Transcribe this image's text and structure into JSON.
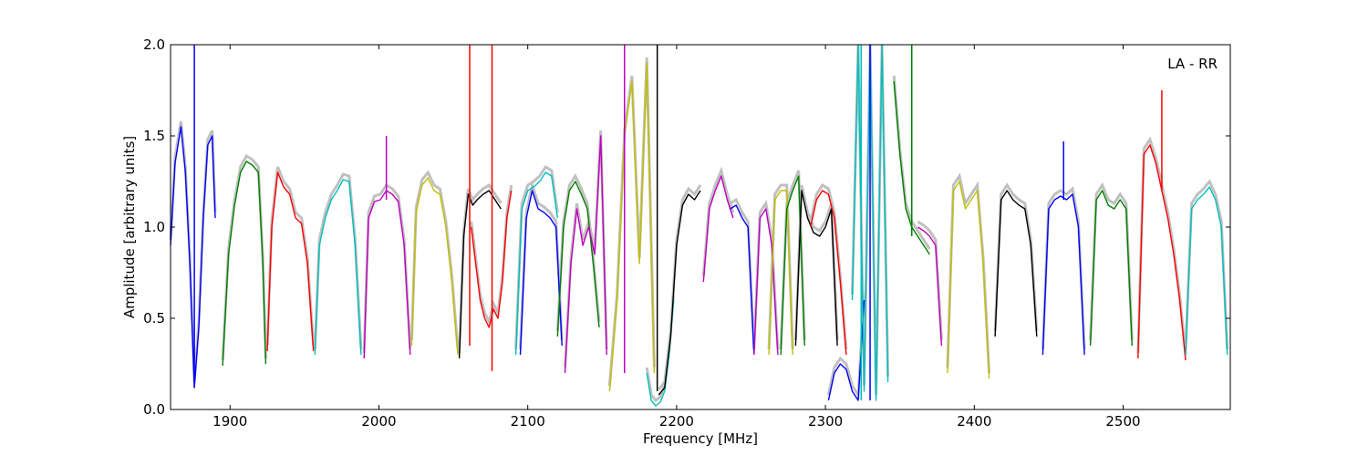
{
  "chart_data": {
    "type": "line",
    "title": "",
    "annotation": "LA - RR",
    "xlabel": "Frequency [MHz]",
    "ylabel": "Amplitude [arbitrary units]",
    "xlim": [
      1860,
      2572
    ],
    "ylim": [
      0.0,
      2.0
    ],
    "xticks": [
      1900,
      2000,
      2100,
      2200,
      2300,
      2400,
      2500
    ],
    "xtick_labels": [
      "1900",
      "2000",
      "2100",
      "2200",
      "2300",
      "2400",
      "2500"
    ],
    "yticks": [
      0.0,
      0.5,
      1.0,
      1.5,
      2.0
    ],
    "ytick_labels": [
      "0.0",
      "0.5",
      "1.0",
      "1.5",
      "2.0"
    ],
    "grid": false,
    "legend": "none",
    "background_color": "#c0c0c0",
    "series": [
      {
        "color": "#0000ff",
        "x": [
          1860,
          1863,
          1867,
          1870,
          1873,
          1876,
          1879,
          1882,
          1885,
          1888,
          1890
        ],
        "y": [
          0.9,
          1.35,
          1.55,
          1.3,
          0.8,
          0.12,
          0.45,
          1.05,
          1.45,
          1.5,
          1.05
        ]
      },
      {
        "color": "#008000",
        "x": [
          1895,
          1899,
          1903,
          1907,
          1911,
          1915,
          1919,
          1922,
          1924
        ],
        "y": [
          0.24,
          0.85,
          1.12,
          1.3,
          1.36,
          1.34,
          1.3,
          0.8,
          0.25
        ]
      },
      {
        "color": "#ff0000",
        "x": [
          1925,
          1928,
          1932,
          1936,
          1940,
          1944,
          1948,
          1952,
          1956
        ],
        "y": [
          0.32,
          1.0,
          1.3,
          1.22,
          1.18,
          1.05,
          1.02,
          0.8,
          0.32
        ]
      },
      {
        "color": "#00bfbf",
        "x": [
          1957,
          1960,
          1964,
          1968,
          1972,
          1976,
          1980,
          1984,
          1988
        ],
        "y": [
          0.3,
          0.9,
          1.05,
          1.15,
          1.2,
          1.26,
          1.25,
          0.9,
          0.3
        ]
      },
      {
        "color": "#bf00bf",
        "x": [
          1990,
          1993,
          1997,
          2001,
          2005,
          2009,
          2013,
          2017,
          2021
        ],
        "y": [
          0.28,
          1.05,
          1.14,
          1.15,
          1.2,
          1.18,
          1.14,
          0.9,
          0.3
        ]
      },
      {
        "color": "#bfbf00",
        "x": [
          2022,
          2025,
          2029,
          2033,
          2037,
          2041,
          2045,
          2049,
          2053
        ],
        "y": [
          0.35,
          1.08,
          1.23,
          1.27,
          1.2,
          1.18,
          1.0,
          0.7,
          0.3
        ]
      },
      {
        "color": "#000000",
        "x": [
          2054,
          2057,
          2060,
          2063,
          2066,
          2070,
          2074,
          2078,
          2082
        ],
        "y": [
          0.28,
          0.95,
          1.18,
          1.12,
          1.15,
          1.18,
          1.2,
          1.15,
          1.1
        ]
      },
      {
        "color": "#ff0000",
        "x": [
          2062,
          2065,
          2068,
          2071,
          2074,
          2077,
          2080,
          2083,
          2086,
          2089
        ],
        "y": [
          1.0,
          0.8,
          0.6,
          0.5,
          0.45,
          0.55,
          0.5,
          0.7,
          1.05,
          1.2
        ]
      },
      {
        "color": "#00bfbf",
        "x": [
          2092,
          2096,
          2100,
          2104,
          2108,
          2112,
          2116,
          2120
        ],
        "y": [
          0.3,
          1.1,
          1.2,
          1.22,
          1.25,
          1.3,
          1.28,
          1.05
        ]
      },
      {
        "color": "#0000ff",
        "x": [
          2095,
          2099,
          2103,
          2107,
          2111,
          2115,
          2119,
          2123
        ],
        "y": [
          0.3,
          1.05,
          1.2,
          1.1,
          1.08,
          1.05,
          1.0,
          0.35
        ]
      },
      {
        "color": "#008000",
        "x": [
          2120,
          2124,
          2128,
          2132,
          2136,
          2140,
          2144,
          2148
        ],
        "y": [
          0.4,
          1.0,
          1.2,
          1.25,
          1.18,
          1.1,
          0.8,
          0.45
        ]
      },
      {
        "color": "#bf00bf",
        "x": [
          2125,
          2129,
          2133,
          2137,
          2141,
          2145,
          2149,
          2153
        ],
        "y": [
          0.2,
          0.8,
          1.1,
          0.9,
          1.0,
          0.85,
          1.5,
          0.3
        ]
      },
      {
        "color": "#bfbf00",
        "x": [
          2155,
          2160,
          2165,
          2170,
          2175,
          2180,
          2185
        ],
        "y": [
          0.1,
          0.6,
          1.5,
          1.8,
          0.8,
          1.9,
          0.2
        ]
      },
      {
        "color": "#00bfbf",
        "x": [
          2180,
          2183,
          2186,
          2189,
          2192,
          2195,
          2198
        ],
        "y": [
          0.2,
          0.05,
          0.02,
          0.04,
          0.1,
          0.3,
          0.6
        ]
      },
      {
        "color": "#000000",
        "x": [
          2188,
          2192,
          2196,
          2200,
          2204,
          2208,
          2212,
          2216
        ],
        "y": [
          0.08,
          0.12,
          0.4,
          0.9,
          1.12,
          1.18,
          1.15,
          1.2
        ]
      },
      {
        "color": "#bf00bf",
        "x": [
          2218,
          2222,
          2226,
          2230,
          2234,
          2238
        ],
        "y": [
          0.7,
          1.1,
          1.2,
          1.28,
          1.15,
          1.05
        ]
      },
      {
        "color": "#0000ff",
        "x": [
          2236,
          2240,
          2244,
          2248,
          2252
        ],
        "y": [
          1.1,
          1.12,
          1.05,
          1.0,
          0.3
        ]
      },
      {
        "color": "#bf00bf",
        "x": [
          2252,
          2256,
          2260,
          2264,
          2268
        ],
        "y": [
          0.3,
          1.05,
          1.1,
          0.9,
          0.3
        ]
      },
      {
        "color": "#bfbf00",
        "x": [
          2262,
          2266,
          2270,
          2274,
          2278
        ],
        "y": [
          0.3,
          1.15,
          1.2,
          1.2,
          0.3
        ]
      },
      {
        "color": "#008000",
        "x": [
          2270,
          2274,
          2278,
          2282,
          2286
        ],
        "y": [
          0.3,
          1.1,
          1.2,
          1.28,
          0.35
        ]
      },
      {
        "color": "#000000",
        "x": [
          2280,
          2284,
          2288,
          2292,
          2296,
          2300,
          2304,
          2308
        ],
        "y": [
          0.35,
          1.2,
          1.05,
          0.97,
          0.95,
          1.0,
          1.1,
          0.35
        ]
      },
      {
        "color": "#ff0000",
        "x": [
          2290,
          2294,
          2298,
          2302,
          2306,
          2310,
          2314
        ],
        "y": [
          1.0,
          1.15,
          1.2,
          1.18,
          1.05,
          0.7,
          0.3
        ]
      },
      {
        "color": "#0000ff",
        "x": [
          2302,
          2306,
          2310,
          2314,
          2318,
          2322,
          2326
        ],
        "y": [
          0.05,
          0.2,
          0.25,
          0.22,
          0.1,
          0.05,
          0.6
        ]
      },
      {
        "color": "#00bfbf",
        "x": [
          2318,
          2322,
          2326,
          2330,
          2334,
          2338,
          2342
        ],
        "y": [
          0.6,
          2.0,
          0.1,
          2.0,
          0.05,
          2.0,
          0.15
        ]
      },
      {
        "color": "#008000",
        "x": [
          2346,
          2350,
          2354,
          2358,
          2362,
          2366,
          2370
        ],
        "y": [
          1.8,
          1.4,
          1.1,
          1.0,
          0.95,
          0.9,
          0.85
        ]
      },
      {
        "color": "#bf00bf",
        "x": [
          2362,
          2366,
          2370,
          2374,
          2378
        ],
        "y": [
          1.0,
          0.98,
          0.95,
          0.9,
          0.35
        ]
      },
      {
        "color": "#bfbf00",
        "x": [
          2382,
          2386,
          2390,
          2394,
          2398,
          2402,
          2406,
          2410
        ],
        "y": [
          0.2,
          1.2,
          1.25,
          1.1,
          1.15,
          1.2,
          0.8,
          0.17
        ]
      },
      {
        "color": "#000000",
        "x": [
          2414,
          2418,
          2422,
          2426,
          2430,
          2434,
          2438,
          2442
        ],
        "y": [
          0.4,
          1.15,
          1.2,
          1.15,
          1.12,
          1.1,
          0.9,
          0.4
        ]
      },
      {
        "color": "#0000ff",
        "x": [
          2446,
          2450,
          2454,
          2458,
          2462,
          2466,
          2470,
          2474
        ],
        "y": [
          0.3,
          1.1,
          1.15,
          1.17,
          1.15,
          1.18,
          1.0,
          0.3
        ]
      },
      {
        "color": "#008000",
        "x": [
          2478,
          2482,
          2486,
          2490,
          2494,
          2498,
          2502,
          2506
        ],
        "y": [
          0.35,
          1.15,
          1.2,
          1.12,
          1.1,
          1.15,
          1.1,
          0.35
        ]
      },
      {
        "color": "#ff0000",
        "x": [
          2510,
          2514,
          2518,
          2522,
          2526,
          2530,
          2534,
          2538,
          2542
        ],
        "y": [
          0.28,
          1.4,
          1.45,
          1.35,
          1.2,
          1.05,
          0.85,
          0.6,
          0.27
        ]
      },
      {
        "color": "#00bfbf",
        "x": [
          2542,
          2546,
          2550,
          2554,
          2558,
          2562,
          2566,
          2570
        ],
        "y": [
          0.3,
          1.1,
          1.15,
          1.18,
          1.22,
          1.15,
          1.0,
          0.3
        ]
      }
    ],
    "spikes": [
      {
        "color": "#0000ff",
        "x": 1876,
        "y": [
          0.12,
          2.0
        ]
      },
      {
        "color": "#ff0000",
        "x": 2061,
        "y": [
          0.35,
          2.0
        ]
      },
      {
        "color": "#ff0000",
        "x": 2076,
        "y": [
          0.21,
          2.0
        ]
      },
      {
        "color": "#bf00bf",
        "x": 2005,
        "y": [
          1.15,
          1.5
        ]
      },
      {
        "color": "#0000ff",
        "x": 2460,
        "y": [
          1.15,
          1.47
        ]
      },
      {
        "color": "#ff0000",
        "x": 2526,
        "y": [
          1.2,
          1.75
        ]
      },
      {
        "color": "#008000",
        "x": 2358,
        "y": [
          0.95,
          2.0
        ]
      },
      {
        "color": "#0000ff",
        "x": 2330,
        "y": [
          0.05,
          2.0
        ]
      },
      {
        "color": "#00bfbf",
        "x": 2324,
        "y": [
          0.05,
          2.0
        ]
      },
      {
        "color": "#bf00bf",
        "x": 2165,
        "y": [
          0.2,
          2.0
        ]
      },
      {
        "color": "#000000",
        "x": 2187,
        "y": [
          0.1,
          2.0
        ]
      }
    ]
  }
}
